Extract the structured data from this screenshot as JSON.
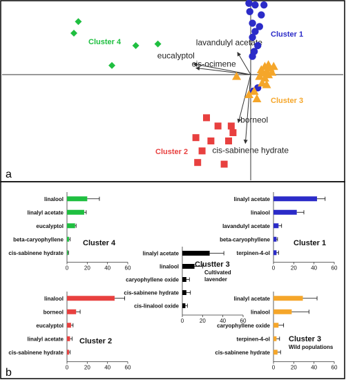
{
  "figure": {
    "panel_a_label": "a",
    "panel_b_label": "b"
  },
  "colors": {
    "cluster1": "#2b2bc8",
    "cluster2": "#e8403f",
    "cluster3_wild": "#f5a62a",
    "cluster3_cultivated": "#000000",
    "cluster4": "#1fbf40",
    "error_bar": "#000000",
    "axis": "#333333"
  },
  "chart_data": [
    {
      "type": "scatter",
      "panel": "a",
      "clusters": [
        {
          "name": "Cluster 1",
          "marker": "circle",
          "color": "#2b2bc8",
          "points": [
            [
              -0.02,
              0.86
            ],
            [
              0.05,
              0.84
            ],
            [
              0.15,
              0.84
            ],
            [
              -0.01,
              0.76
            ],
            [
              0.12,
              0.72
            ],
            [
              0.02,
              0.62
            ],
            [
              0.1,
              0.58
            ],
            [
              0.05,
              0.52
            ],
            [
              0.02,
              0.45
            ],
            [
              0.08,
              0.35
            ],
            [
              0.04,
              0.28
            ],
            [
              0.02,
              0.22
            ],
            [
              0.08,
              -0.16
            ],
            [
              0.03,
              -0.2
            ]
          ]
        },
        {
          "name": "Cluster 3",
          "marker": "triangle",
          "color": "#f5a62a",
          "points": [
            [
              0.12,
              0.06
            ],
            [
              0.16,
              0.1
            ],
            [
              0.2,
              0.12
            ],
            [
              0.14,
              0.02
            ],
            [
              0.18,
              0.04
            ],
            [
              0.22,
              0.08
            ],
            [
              0.1,
              -0.02
            ],
            [
              0.16,
              -0.04
            ],
            [
              0.2,
              0.0
            ],
            [
              0.24,
              0.03
            ],
            [
              0.26,
              0.1
            ],
            [
              0.13,
              -0.1
            ],
            [
              0.18,
              -0.12
            ],
            [
              0.04,
              -0.2
            ],
            [
              0.07,
              -0.29
            ],
            [
              -0.02,
              -0.24
            ],
            [
              -0.16,
              -0.02
            ]
          ]
        },
        {
          "name": "Cluster 2",
          "marker": "square",
          "color": "#e8403f",
          "points": [
            [
              -0.5,
              -0.52
            ],
            [
              -0.37,
              -0.62
            ],
            [
              -0.22,
              -0.62
            ],
            [
              -0.2,
              -0.7
            ],
            [
              -0.62,
              -0.76
            ],
            [
              -0.45,
              -0.8
            ],
            [
              -0.25,
              -0.8
            ],
            [
              -0.55,
              -0.92
            ],
            [
              -0.6,
              -1.06
            ],
            [
              -0.3,
              -1.08
            ]
          ]
        },
        {
          "name": "Cluster 4",
          "marker": "diamond",
          "color": "#1fbf40",
          "points": [
            [
              -1.95,
              0.64
            ],
            [
              -2.0,
              0.5
            ],
            [
              -1.3,
              0.35
            ],
            [
              -1.05,
              0.37
            ],
            [
              -1.57,
              0.11
            ]
          ]
        }
      ],
      "loadings": [
        {
          "name": "lavandulyl acetate",
          "end": [
            -0.15,
            0.27
          ]
        },
        {
          "name": "eucalyptol",
          "end": [
            -0.65,
            0.13
          ]
        },
        {
          "name": "cis-ocimene",
          "end": [
            -0.62,
            0.08
          ]
        },
        {
          "name": "borneol",
          "end": [
            -0.14,
            -0.58
          ]
        },
        {
          "name": "cis-sabinene hydrate",
          "end": [
            -0.06,
            -0.83
          ]
        }
      ],
      "cluster_labels": [
        {
          "text": "Cluster 1",
          "color": "#2b2bc8"
        },
        {
          "text": "Cluster 2",
          "color": "#e8403f"
        },
        {
          "text": "Cluster 3",
          "color": "#f5a62a"
        },
        {
          "text": "Cluster 4",
          "color": "#1fbf40"
        }
      ],
      "axes": {
        "xlim": [
          -2.2,
          0.55
        ],
        "ylim": [
          -1.2,
          0.95
        ],
        "grid": false
      }
    },
    {
      "type": "bar",
      "orientation": "horizontal",
      "panel_title": "Cluster 4",
      "color": "#1fbf40",
      "categories": [
        "linalool",
        "linalyl acetate",
        "eucalyptol",
        "beta-caryophyllene",
        "cis-sabinene hydrate"
      ],
      "values": [
        20,
        17,
        8,
        2,
        1
      ],
      "errors": [
        12,
        2,
        1,
        1,
        0.5
      ],
      "xlim": [
        0,
        60
      ],
      "xticks": [
        "0",
        "20",
        "40",
        "60"
      ]
    },
    {
      "type": "bar",
      "orientation": "horizontal",
      "panel_title": "Cluster 1",
      "color": "#2b2bc8",
      "categories": [
        "linalyl acetate",
        "linalool",
        "lavandulyl acetate",
        "beta-caryophyllene",
        "terpinen-4-ol"
      ],
      "values": [
        43,
        23,
        5,
        3,
        3
      ],
      "errors": [
        8,
        7,
        3,
        1,
        2
      ],
      "xlim": [
        0,
        60
      ],
      "xticks": [
        "0",
        "20",
        "40",
        "60"
      ]
    },
    {
      "type": "bar",
      "orientation": "horizontal",
      "panel_title": "Clustter 3",
      "panel_subtitle": [
        "Cultivated",
        "lavender"
      ],
      "color": "#000000",
      "categories": [
        "linalyl acetate",
        "linalool",
        "caryophyllene oxide",
        "cis-sabinene hydrate",
        "cis-linalool oxide"
      ],
      "values": [
        27,
        12,
        4,
        4,
        3
      ],
      "errors": [
        14,
        8,
        3,
        4,
        2
      ],
      "xlim": [
        0,
        60
      ],
      "xticks": [
        "0",
        "20",
        "40",
        "60"
      ]
    },
    {
      "type": "bar",
      "orientation": "horizontal",
      "panel_title": "Cluster 2",
      "color": "#e8403f",
      "categories": [
        "linalool",
        "borneol",
        "eucalyptol",
        "linalyl acetate",
        "cis-sabinene hydrate"
      ],
      "values": [
        47,
        9,
        4,
        3,
        2
      ],
      "errors": [
        10,
        4,
        2,
        2,
        1
      ],
      "xlim": [
        0,
        60
      ],
      "xticks": [
        "0",
        "20",
        "40",
        "60"
      ]
    },
    {
      "type": "bar",
      "orientation": "horizontal",
      "panel_title": "Cluster 3",
      "panel_subtitle": [
        "Wild populations"
      ],
      "color": "#f5a62a",
      "categories": [
        "linalyl acetate",
        "linalool",
        "caryophyllene oxide",
        "terpinen-4-ol",
        "cis-sabinene hydrate"
      ],
      "values": [
        29,
        18,
        5,
        3,
        4
      ],
      "errors": [
        14,
        17,
        5,
        3,
        3
      ],
      "xlim": [
        0,
        60
      ],
      "xticks": [
        "0",
        "20",
        "40",
        "60"
      ]
    }
  ]
}
